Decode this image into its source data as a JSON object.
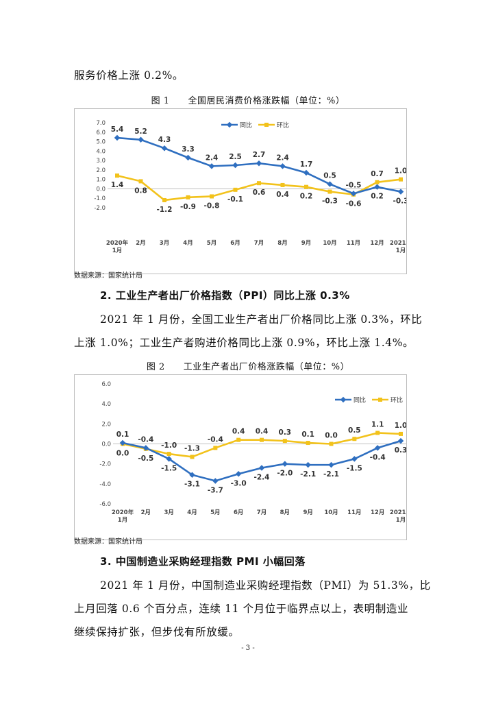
{
  "top_line": "服务价格上涨 0.2%。",
  "figure1": {
    "caption": "图 1　　全国居民消费价格涨跌幅（单位：%）",
    "source": "数据来源：国家统计局"
  },
  "section2": {
    "heading": "2. 工业生产者出厂价格指数（PPI）同比上涨 0.3%",
    "para_line1": "2021 年 1 月份，全国工业生产者出厂价格同比上涨 0.3%，环比",
    "para_line2": "上涨 1.0%；工业生产者购进价格同比上涨 0.9%，环比上涨 1.4%。"
  },
  "figure2": {
    "caption": "图 2　　工业生产者出厂价格涨跌幅（单位：%）",
    "source": "数据来源：国家统计局"
  },
  "section3": {
    "heading": "3. 中国制造业采购经理指数 PMI 小幅回落",
    "para_line1": "2021 年 1 月份，中国制造业采购经理指数（PMI）为 51.3%，比",
    "para_line2": "上月回落 0.6 个百分点，连续 11 个月位于临界点以上，表明制造业",
    "para_line3": "继续保持扩张，但步伐有所放缓。"
  },
  "page_number": "- 3 -",
  "colors": {
    "yoy": "#2f6fc0",
    "mom": "#f2c21b"
  },
  "chart_data": [
    {
      "type": "line",
      "categories": [
        [
          "2020年",
          "1月"
        ],
        [
          "2月"
        ],
        [
          "3月"
        ],
        [
          "4月"
        ],
        [
          "5月"
        ],
        [
          "6月"
        ],
        [
          "7月"
        ],
        [
          "8月"
        ],
        [
          "9月"
        ],
        [
          "10月"
        ],
        [
          "11月"
        ],
        [
          "12月"
        ],
        [
          "2021年",
          "1月"
        ]
      ],
      "series": [
        {
          "name": "同比",
          "values": [
            5.4,
            5.2,
            4.3,
            3.3,
            2.4,
            2.5,
            2.7,
            2.4,
            1.7,
            0.5,
            -0.5,
            0.2,
            -0.3
          ],
          "labels": [
            "5.4",
            "5.2",
            "4.3",
            "3.3",
            "2.4",
            "2.5",
            "2.7",
            "2.4",
            "1.7",
            "0.5",
            "-0.5",
            "0.2",
            "-0.3"
          ]
        },
        {
          "name": "环比",
          "values": [
            1.4,
            0.8,
            -1.2,
            -0.9,
            -0.8,
            -0.1,
            0.6,
            0.4,
            0.2,
            -0.3,
            -0.6,
            0.7,
            1.0
          ],
          "labels": [
            "1.4",
            "0.8",
            "-1.2",
            "-0.9",
            "-0.8",
            "-0.1",
            "0.6",
            "0.4",
            "0.2",
            "-0.3",
            "-0.6",
            "0.7",
            "1.0"
          ]
        }
      ],
      "yticks": [
        "7.0",
        "6.0",
        "5.0",
        "4.0",
        "3.0",
        "2.0",
        "1.0",
        "0.0",
        "-1.0",
        "-2.0"
      ],
      "ylim": [
        -2,
        7
      ],
      "legend": "top",
      "grid": false
    },
    {
      "type": "line",
      "categories": [
        [
          "2020年",
          "1月"
        ],
        [
          "2月"
        ],
        [
          "3月"
        ],
        [
          "4月"
        ],
        [
          "5月"
        ],
        [
          "6月"
        ],
        [
          "7月"
        ],
        [
          "8月"
        ],
        [
          "9月"
        ],
        [
          "10月"
        ],
        [
          "11月"
        ],
        [
          "12月"
        ],
        [
          "2021年",
          "1月"
        ]
      ],
      "series": [
        {
          "name": "同比",
          "values": [
            0.1,
            -0.4,
            -1.5,
            -3.1,
            -3.7,
            -3.0,
            -2.4,
            -2.0,
            -2.1,
            -2.1,
            -1.5,
            -0.4,
            0.3
          ],
          "labels": [
            "0.1",
            "-0.4",
            "-1.5",
            "-3.1",
            "-3.7",
            "-3.0",
            "-2.4",
            "-2.0",
            "-2.1",
            "-2.1",
            "-1.5",
            "-0.4",
            "0.3"
          ]
        },
        {
          "name": "环比",
          "values": [
            0.0,
            -0.5,
            -1.0,
            -1.3,
            -0.4,
            0.4,
            0.4,
            0.3,
            0.1,
            0.0,
            0.5,
            1.1,
            1.0
          ],
          "labels": [
            "0.0",
            "-0.5",
            "-1.0",
            "-1.3",
            "-0.4",
            "0.4",
            "0.4",
            "0.3",
            "0.1",
            "0.0",
            "0.5",
            "1.1",
            "1.0"
          ]
        }
      ],
      "yticks": [
        "6.0",
        "4.0",
        "2.0",
        "0.0",
        "-2.0",
        "-4.0",
        "-6.0"
      ],
      "ylim": [
        -6,
        6
      ],
      "legend": "top-right",
      "grid": false
    }
  ]
}
